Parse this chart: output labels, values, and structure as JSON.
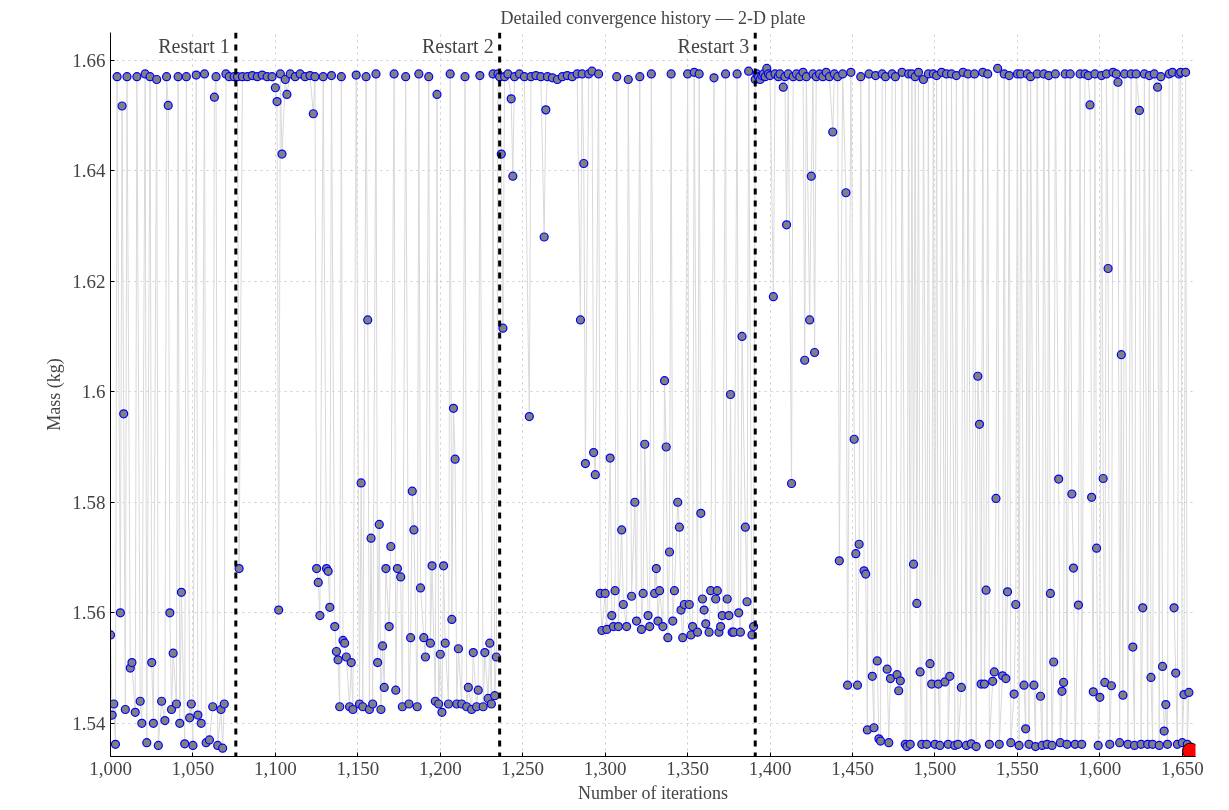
{
  "chart_data": {
    "type": "line",
    "title": "Detailed convergence history — 2-D plate",
    "xlabel": "Number of iterations",
    "ylabel": "Mass (kg)",
    "xlim": [
      1000,
      1658
    ],
    "ylim": [
      1.534,
      1.665
    ],
    "xticks": [
      {
        "value": 1000,
        "label": "1,000"
      },
      {
        "value": 1050,
        "label": "1,050"
      },
      {
        "value": 1100,
        "label": "1,100"
      },
      {
        "value": 1150,
        "label": "1,150"
      },
      {
        "value": 1200,
        "label": "1,200"
      },
      {
        "value": 1250,
        "label": "1,250"
      },
      {
        "value": 1300,
        "label": "1,300"
      },
      {
        "value": 1350,
        "label": "1,350"
      },
      {
        "value": 1400,
        "label": "1,400"
      },
      {
        "value": 1450,
        "label": "1,450"
      },
      {
        "value": 1500,
        "label": "1,500"
      },
      {
        "value": 1550,
        "label": "1,550"
      },
      {
        "value": 1600,
        "label": "1,600"
      },
      {
        "value": 1650,
        "label": "1,650"
      }
    ],
    "yticks": [
      1.54,
      1.56,
      1.58,
      1.6,
      1.62,
      1.64,
      1.66
    ],
    "grid": true,
    "marker": "circle",
    "line_style": "solid",
    "ref_lines": [
      {
        "axis": "x",
        "value": 1076,
        "label": "Restart 1",
        "color": "#000000",
        "line_style": "dashed"
      },
      {
        "axis": "x",
        "value": 1236,
        "label": "Restart 2",
        "color": "#000000",
        "line_style": "dashed"
      },
      {
        "axis": "x",
        "value": 1391,
        "label": "Restart 3",
        "color": "#000000",
        "line_style": "dashed"
      }
    ],
    "series": [
      {
        "color": "#808080",
        "x": [
          1000,
          1001,
          1002,
          1003,
          1004,
          1006,
          1007,
          1008,
          1009,
          1010,
          1012,
          1013,
          1015,
          1016,
          1018,
          1019,
          1021,
          1022,
          1024,
          1025,
          1026,
          1028,
          1029,
          1031,
          1033,
          1034,
          1035,
          1036,
          1037,
          1038,
          1040,
          1041,
          1042,
          1043,
          1045,
          1046,
          1048,
          1049,
          1050,
          1052,
          1053,
          1055,
          1057,
          1058,
          1060,
          1062,
          1063,
          1064,
          1065,
          1067,
          1068,
          1069,
          1070,
          1072,
          1075,
          1077,
          1078,
          1080,
          1083,
          1086,
          1089,
          1092,
          1095,
          1098,
          1100,
          1101,
          1102,
          1103,
          1104,
          1106,
          1107,
          1109,
          1112,
          1115,
          1118,
          1121,
          1123,
          1124,
          1125,
          1126,
          1127,
          1129,
          1131,
          1132,
          1133,
          1134,
          1136,
          1137,
          1138,
          1139,
          1140,
          1141,
          1142,
          1143,
          1145,
          1146,
          1147,
          1149,
          1151,
          1152,
          1153,
          1155,
          1156,
          1157,
          1158,
          1159,
          1161,
          1162,
          1163,
          1164,
          1165,
          1166,
          1167,
          1169,
          1170,
          1172,
          1173,
          1174,
          1176,
          1177,
          1179,
          1181,
          1182,
          1183,
          1184,
          1186,
          1187,
          1188,
          1190,
          1191,
          1193,
          1194,
          1195,
          1197,
          1198,
          1199,
          1200,
          1201,
          1202,
          1203,
          1205,
          1206,
          1207,
          1208,
          1209,
          1210,
          1211,
          1213,
          1215,
          1216,
          1217,
          1219,
          1220,
          1222,
          1223,
          1224,
          1226,
          1227,
          1229,
          1230,
          1231,
          1232,
          1233,
          1234,
          1235,
          1236,
          1237,
          1238,
          1239,
          1241,
          1243,
          1244,
          1245,
          1248,
          1251,
          1254,
          1255,
          1258,
          1261,
          1263,
          1264,
          1265,
          1268,
          1271,
          1274,
          1277,
          1280,
          1283,
          1285,
          1286,
          1287,
          1288,
          1290,
          1292,
          1293,
          1294,
          1296,
          1297,
          1298,
          1300,
          1301,
          1303,
          1304,
          1305,
          1306,
          1307,
          1308,
          1310,
          1311,
          1313,
          1314,
          1316,
          1318,
          1319,
          1321,
          1322,
          1323,
          1324,
          1326,
          1327,
          1328,
          1330,
          1331,
          1332,
          1333,
          1335,
          1336,
          1337,
          1338,
          1339,
          1340,
          1341,
          1342,
          1344,
          1345,
          1346,
          1347,
          1348,
          1350,
          1351,
          1352,
          1353,
          1354,
          1356,
          1357,
          1358,
          1359,
          1360,
          1361,
          1363,
          1364,
          1366,
          1367,
          1368,
          1369,
          1370,
          1371,
          1373,
          1374,
          1375,
          1376,
          1377,
          1378,
          1380,
          1381,
          1382,
          1383,
          1385,
          1386,
          1387,
          1389,
          1390,
          1391,
          1392,
          1393,
          1394,
          1395,
          1396,
          1397,
          1398,
          1399,
          1400,
          1402,
          1403,
          1405,
          1406,
          1408,
          1409,
          1410,
          1411,
          1413,
          1414,
          1416,
          1418,
          1420,
          1421,
          1422,
          1424,
          1425,
          1426,
          1427,
          1428,
          1430,
          1432,
          1434,
          1436,
          1438,
          1439,
          1441,
          1442,
          1444,
          1446,
          1447,
          1449,
          1451,
          1452,
          1453,
          1454,
          1455,
          1457,
          1458,
          1459,
          1460,
          1462,
          1463,
          1464,
          1465,
          1466,
          1467,
          1468,
          1470,
          1471,
          1472,
          1473,
          1474,
          1476,
          1477,
          1478,
          1479,
          1480,
          1482,
          1483,
          1484,
          1485,
          1486,
          1487,
          1488,
          1489,
          1490,
          1491,
          1492,
          1493,
          1495,
          1496,
          1497,
          1498,
          1499,
          1500,
          1501,
          1502,
          1503,
          1504,
          1506,
          1507,
          1508,
          1509,
          1510,
          1512,
          1513,
          1514,
          1516,
          1517,
          1519,
          1520,
          1522,
          1524,
          1525,
          1526,
          1527,
          1528,
          1529,
          1530,
          1531,
          1532,
          1533,
          1535,
          1536,
          1537,
          1538,
          1539,
          1541,
          1542,
          1543,
          1544,
          1545,
          1546,
          1548,
          1549,
          1550,
          1551,
          1552,
          1554,
          1555,
          1556,
          1557,
          1558,
          1560,
          1561,
          1562,
          1564,
          1565,
          1566,
          1568,
          1569,
          1570,
          1571,
          1572,
          1573,
          1575,
          1576,
          1577,
          1578,
          1579,
          1580,
          1582,
          1583,
          1584,
          1585,
          1587,
          1588,
          1589,
          1591,
          1593,
          1594,
          1595,
          1596,
          1597,
          1598,
          1599,
          1600,
          1601,
          1602,
          1603,
          1604,
          1605,
          1606,
          1607,
          1608,
          1610,
          1611,
          1612,
          1613,
          1614,
          1615,
          1617,
          1619,
          1620,
          1621,
          1622,
          1624,
          1625,
          1626,
          1627,
          1629,
          1630,
          1631,
          1632,
          1633,
          1635,
          1636,
          1637,
          1638,
          1639,
          1640,
          1641,
          1642,
          1644,
          1645,
          1646,
          1647,
          1648,
          1649,
          1650,
          1651,
          1652,
          1653,
          1654
        ],
        "values": [
          1.556,
          1.5415,
          1.5435,
          1.5362,
          1.657,
          1.56,
          1.6517,
          1.596,
          1.5425,
          1.657,
          1.55,
          1.551,
          1.542,
          1.657,
          1.544,
          1.54,
          1.6575,
          1.5365,
          1.657,
          1.551,
          1.54,
          1.6565,
          1.536,
          1.544,
          1.5405,
          1.657,
          1.6518,
          1.56,
          1.5425,
          1.5527,
          1.5435,
          1.657,
          1.54,
          1.5637,
          1.5363,
          1.657,
          1.541,
          1.5435,
          1.536,
          1.6573,
          1.5415,
          1.54,
          1.6575,
          1.5365,
          1.537,
          1.543,
          1.6533,
          1.657,
          1.536,
          1.5425,
          1.5355,
          1.5435,
          1.6575,
          1.657,
          1.657,
          1.657,
          1.568,
          1.657,
          1.657,
          1.6572,
          1.657,
          1.6573,
          1.657,
          1.657,
          1.655,
          1.6525,
          1.5605,
          1.6575,
          1.643,
          1.6565,
          1.6538,
          1.6575,
          1.657,
          1.6575,
          1.657,
          1.6572,
          1.6503,
          1.657,
          1.568,
          1.5655,
          1.5595,
          1.657,
          1.568,
          1.5675,
          1.561,
          1.6572,
          1.5575,
          1.553,
          1.5515,
          1.543,
          1.657,
          1.555,
          1.5545,
          1.552,
          1.543,
          1.551,
          1.5425,
          1.6573,
          1.5435,
          1.5835,
          1.543,
          1.657,
          1.613,
          1.5425,
          1.5735,
          1.5435,
          1.6575,
          1.551,
          1.576,
          1.5425,
          1.554,
          1.5465,
          1.568,
          1.5575,
          1.572,
          1.6575,
          1.546,
          1.568,
          1.5665,
          1.543,
          1.657,
          1.5435,
          1.5555,
          1.582,
          1.575,
          1.543,
          1.6575,
          1.5645,
          1.5555,
          1.552,
          1.657,
          1.5545,
          1.5685,
          1.544,
          1.6538,
          1.5435,
          1.5525,
          1.542,
          1.5685,
          1.5545,
          1.5435,
          1.6575,
          1.5588,
          1.597,
          1.5878,
          1.5435,
          1.5535,
          1.5435,
          1.657,
          1.543,
          1.5465,
          1.5425,
          1.5528,
          1.543,
          1.546,
          1.6572,
          1.543,
          1.5528,
          1.5445,
          1.5545,
          1.5435,
          1.6575,
          1.545,
          1.552,
          1.6575,
          1.657,
          1.643,
          1.6115,
          1.657,
          1.6575,
          1.653,
          1.639,
          1.657,
          1.6575,
          1.657,
          1.5955,
          1.657,
          1.6572,
          1.657,
          1.628,
          1.651,
          1.657,
          1.6568,
          1.6565,
          1.657,
          1.6572,
          1.657,
          1.6575,
          1.613,
          1.6575,
          1.6413,
          1.587,
          1.6575,
          1.658,
          1.589,
          1.585,
          1.6575,
          1.5635,
          1.5568,
          1.5635,
          1.557,
          1.588,
          1.5595,
          1.5575,
          1.564,
          1.657,
          1.5575,
          1.575,
          1.5615,
          1.5575,
          1.6565,
          1.563,
          1.58,
          1.5585,
          1.657,
          1.557,
          1.5635,
          1.5905,
          1.5595,
          1.5575,
          1.6575,
          1.5635,
          1.568,
          1.5585,
          1.564,
          1.5575,
          1.602,
          1.59,
          1.5555,
          1.571,
          1.6575,
          1.5585,
          1.564,
          1.58,
          1.5755,
          1.5605,
          1.5555,
          1.5615,
          1.6575,
          1.5615,
          1.556,
          1.5575,
          1.6578,
          1.5565,
          1.6575,
          1.578,
          1.5625,
          1.5605,
          1.558,
          1.5565,
          1.564,
          1.6568,
          1.5625,
          1.564,
          1.5565,
          1.5575,
          1.5595,
          1.6575,
          1.5625,
          1.5595,
          1.5995,
          1.5565,
          1.5565,
          1.6575,
          1.56,
          1.5565,
          1.61,
          1.5755,
          1.562,
          1.658,
          1.556,
          1.5575,
          1.6565,
          1.6575,
          1.657,
          1.6565,
          1.6572,
          1.6575,
          1.657,
          1.6585,
          1.6575,
          1.6572,
          1.6172,
          1.6575,
          1.657,
          1.6575,
          1.6551,
          1.657,
          1.6302,
          1.6575,
          1.5834,
          1.657,
          1.6575,
          1.657,
          1.6578,
          1.6057,
          1.657,
          1.613,
          1.639,
          1.6575,
          1.6071,
          1.657,
          1.6575,
          1.657,
          1.6578,
          1.657,
          1.647,
          1.6575,
          1.657,
          1.5694,
          1.6575,
          1.636,
          1.5469,
          1.6578,
          1.5914,
          1.5707,
          1.5469,
          1.5724,
          1.657,
          1.5676,
          1.567,
          1.5388,
          1.6575,
          1.5485,
          1.5392,
          1.6572,
          1.5513,
          1.5372,
          1.5368,
          1.6575,
          1.657,
          1.5498,
          1.5365,
          1.5481,
          1.6575,
          1.657,
          1.5488,
          1.5459,
          1.5477,
          1.6578,
          1.5362,
          1.5358,
          1.6575,
          1.5362,
          1.6575,
          1.5688,
          1.657,
          1.5617,
          1.6578,
          1.5493,
          1.5362,
          1.6565,
          1.5362,
          1.6575,
          1.5508,
          1.5471,
          1.6575,
          1.5362,
          1.6572,
          1.5471,
          1.536,
          1.6578,
          1.5475,
          1.6575,
          1.5362,
          1.5485,
          1.6575,
          1.536,
          1.6572,
          1.5362,
          1.5465,
          1.6578,
          1.536,
          1.6575,
          1.5363,
          1.6575,
          1.5358,
          1.6028,
          1.5941,
          1.5471,
          1.6578,
          1.5471,
          1.5641,
          1.6575,
          1.5362,
          1.5476,
          1.5493,
          1.5807,
          1.6585,
          1.5362,
          1.5486,
          1.6575,
          1.5481,
          1.5638,
          1.6572,
          1.5365,
          1.5453,
          1.5615,
          1.6575,
          1.536,
          1.6575,
          1.5469,
          1.539,
          1.6575,
          1.5362,
          1.657,
          1.5469,
          1.5358,
          1.6575,
          1.5449,
          1.536,
          1.6575,
          1.5362,
          1.6572,
          1.5635,
          1.536,
          1.5511,
          1.6575,
          1.5842,
          1.5365,
          1.5458,
          1.5474,
          1.6575,
          1.5362,
          1.6575,
          1.5815,
          1.5681,
          1.5362,
          1.5614,
          1.6575,
          1.5362,
          1.6575,
          1.6572,
          1.6519,
          1.5809,
          1.5457,
          1.6575,
          1.5717,
          1.536,
          1.5447,
          1.6572,
          1.5843,
          1.5474,
          1.6575,
          1.6223,
          1.5362,
          1.5468,
          1.6578,
          1.6575,
          1.656,
          1.5365,
          1.6067,
          1.5451,
          1.6575,
          1.5362,
          1.6575,
          1.5538,
          1.536,
          1.6575,
          1.6509,
          1.5362,
          1.5609,
          1.6575,
          1.5362,
          1.6572,
          1.5483,
          1.5362,
          1.6575,
          1.6551,
          1.536,
          1.657,
          1.5503,
          1.5386,
          1.5434,
          1.5362,
          1.6575,
          1.6578,
          1.5609,
          1.5491,
          1.5362,
          1.6575,
          1.6578,
          1.5365,
          1.5452,
          1.6578,
          1.5362,
          1.5456
        ]
      },
      {
        "type": "scatter",
        "color": "#ff0000",
        "x": [
          1655
        ],
        "values": [
          1.535
        ]
      }
    ]
  }
}
